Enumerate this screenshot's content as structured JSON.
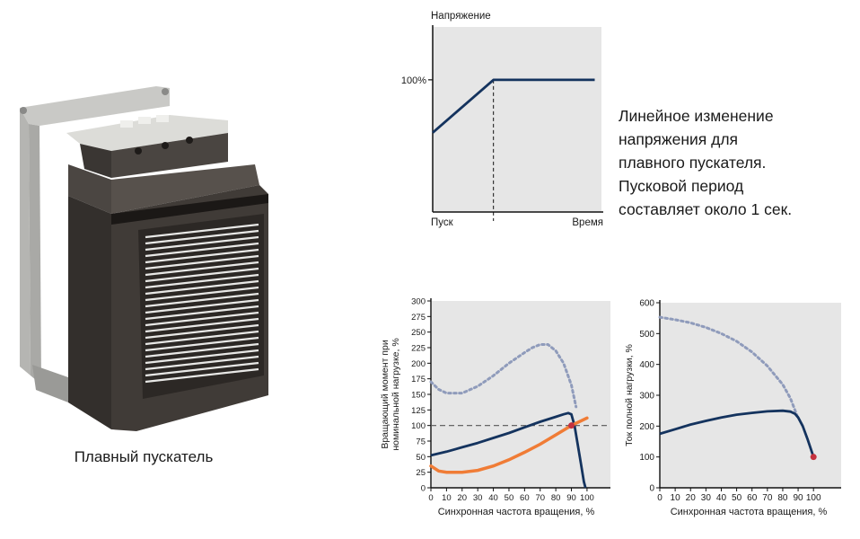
{
  "device_caption": "Плавный пускатель",
  "description": [
    "Линейное изменение",
    "напряжения для",
    "плавного пускателя.",
    "Пусковой период",
    "составляет около 1 сек."
  ],
  "colors": {
    "chart_bg": "#e6e6e6",
    "navy": "#14335e",
    "orange": "#f07c36",
    "dotted": "#8f9bbb",
    "marker": "#c4323f",
    "device_body": "#3e3a36"
  },
  "chart_data": [
    {
      "type": "line",
      "title": "",
      "ylabel": "Напряжение",
      "xlabel": "",
      "x_tick_labels": [
        "Пуск",
        "Время"
      ],
      "y_tick_labels": [
        "100%"
      ],
      "xlim": [
        0,
        10
      ],
      "ylim": [
        0,
        140
      ],
      "grid": false,
      "series": [
        {
          "x": [
            0,
            3.6,
            9.6
          ],
          "values": [
            60,
            100,
            100
          ]
        }
      ],
      "reference_line": {
        "x": 3.6,
        "style": "dashed"
      }
    },
    {
      "type": "line",
      "title": "",
      "ylabel": "Вращающий момент при номинальной нагрузке, %",
      "xlabel": "Синхронная частота вращения, %",
      "xticks": [
        0,
        10,
        20,
        30,
        40,
        50,
        60,
        70,
        80,
        90,
        100
      ],
      "yticks": [
        0,
        25,
        50,
        75,
        100,
        125,
        150,
        175,
        200,
        225,
        250,
        275,
        300
      ],
      "xlim": [
        0,
        115
      ],
      "ylim": [
        0,
        300
      ],
      "grid": false,
      "legend": "none",
      "series": [
        {
          "style": "dotted",
          "x": [
            0,
            5,
            10,
            20,
            30,
            40,
            50,
            60,
            65,
            70,
            75,
            80,
            85,
            90,
            93
          ],
          "values": [
            170,
            158,
            152,
            152,
            163,
            180,
            200,
            217,
            225,
            230,
            230,
            220,
            200,
            165,
            130
          ]
        },
        {
          "style": "solid-navy",
          "x": [
            0,
            10,
            20,
            30,
            40,
            50,
            60,
            70,
            80,
            85,
            88,
            90,
            92,
            94,
            96,
            98,
            99
          ],
          "values": [
            52,
            58,
            65,
            72,
            80,
            88,
            97,
            106,
            114,
            118,
            120,
            118,
            100,
            70,
            40,
            10,
            0
          ]
        },
        {
          "style": "solid-orange",
          "x": [
            0,
            5,
            10,
            20,
            30,
            40,
            50,
            60,
            70,
            80,
            90,
            100
          ],
          "values": [
            35,
            27,
            25,
            25,
            28,
            35,
            45,
            57,
            70,
            85,
            100,
            112
          ]
        }
      ],
      "reference_line": {
        "y": 100,
        "style": "dashed"
      },
      "marker": {
        "x": 90,
        "y": 100
      }
    },
    {
      "type": "line",
      "title": "",
      "ylabel": "Ток полной нагрузки, %",
      "xlabel": "Синхронная частота вращения, %",
      "xticks": [
        0,
        10,
        20,
        30,
        40,
        50,
        60,
        70,
        80,
        90,
        100
      ],
      "yticks": [
        0,
        100,
        200,
        300,
        400,
        500,
        600
      ],
      "xlim": [
        0,
        118
      ],
      "ylim": [
        0,
        600
      ],
      "grid": false,
      "legend": "none",
      "series": [
        {
          "style": "dotted",
          "x": [
            0,
            10,
            20,
            30,
            40,
            50,
            60,
            70,
            80,
            85,
            90
          ],
          "values": [
            553,
            545,
            535,
            520,
            500,
            475,
            440,
            395,
            335,
            290,
            225
          ]
        },
        {
          "style": "solid-navy",
          "x": [
            0,
            10,
            20,
            30,
            40,
            50,
            60,
            70,
            80,
            85,
            88,
            90,
            93,
            96,
            98,
            100
          ],
          "values": [
            175,
            190,
            205,
            217,
            228,
            237,
            243,
            248,
            250,
            247,
            240,
            228,
            200,
            160,
            130,
            100
          ]
        }
      ],
      "marker": {
        "x": 100,
        "y": 100
      }
    }
  ]
}
